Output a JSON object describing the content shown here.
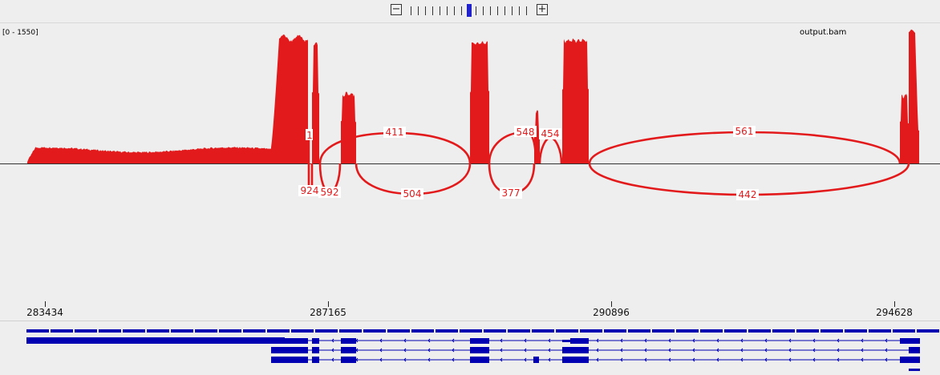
{
  "track": {
    "data_range": "[0 - 1550]",
    "name": "output.bam",
    "coverage_color": "#e31a1c"
  },
  "ruler": {
    "ticks": [
      "283434",
      "287165",
      "290896",
      "294628"
    ]
  },
  "junctions": {
    "above": [
      "1",
      "411",
      "548",
      "454",
      "561"
    ],
    "below": [
      "924",
      "592",
      "504",
      "377",
      "442"
    ]
  },
  "icons": {
    "zoom_out": "minus-icon",
    "zoom_in": "plus-icon"
  },
  "glyphs": {
    "minus": "−",
    "plus": "+"
  },
  "zoom": {
    "levels": 17,
    "current": 9
  },
  "colors": {
    "junction": "#e31a1c",
    "gene": "#0000b2",
    "zoom_current": "#2222cc"
  }
}
